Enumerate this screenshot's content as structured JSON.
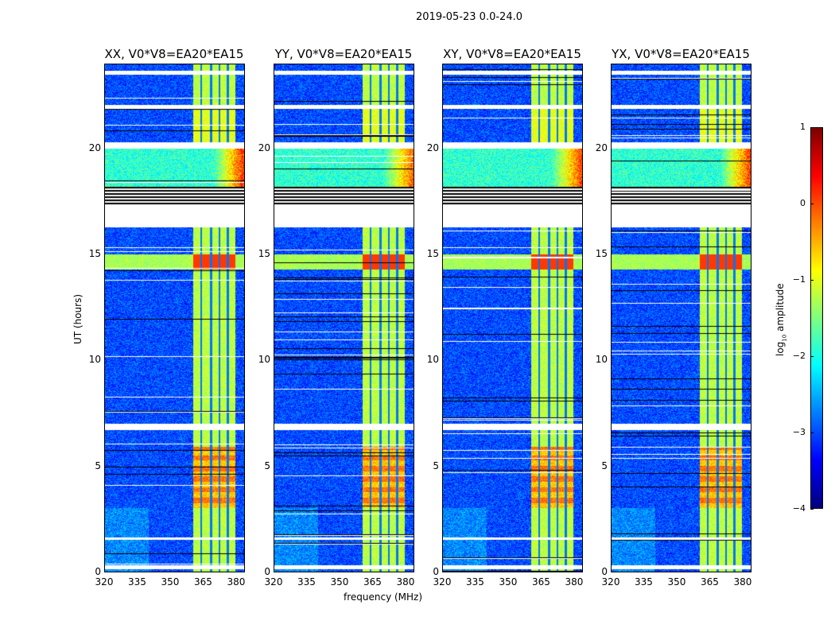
{
  "suptitle": "2019-05-23 0.0-24.0",
  "xlabel": "frequency (MHz)",
  "ylabel": "UT (hours)",
  "colorbar": {
    "label": "log10 amplitude",
    "label_main": "log",
    "label_sub": "10",
    "label_rest": " amplitude",
    "range": [
      -4,
      1
    ],
    "ticks": [
      "1",
      "0",
      "−1",
      "−2",
      "−3",
      "−4"
    ],
    "tick_values": [
      1,
      0,
      -1,
      -2,
      -3,
      -4
    ],
    "colormap": "jet"
  },
  "chart_data": [
    {
      "type": "heatmap",
      "title": "XX, V0*V8=EA20*EA15",
      "xlim": [
        320,
        384
      ],
      "ylim": [
        0,
        24
      ],
      "xticks": [
        "320",
        "335",
        "350",
        "365",
        "380"
      ],
      "yticks": [
        "0",
        "5",
        "10",
        "15",
        "20"
      ],
      "seed": 1,
      "hot_edge": 0.6
    },
    {
      "type": "heatmap",
      "title": "YY, V0*V8=EA20*EA15",
      "xlim": [
        320,
        384
      ],
      "ylim": [
        0,
        24
      ],
      "xticks": [
        "320",
        "335",
        "350",
        "365",
        "380"
      ],
      "yticks": [
        "0",
        "5",
        "10",
        "15",
        "20"
      ],
      "seed": 2,
      "hot_edge": 0.3
    },
    {
      "type": "heatmap",
      "title": "XY, V0*V8=EA20*EA15",
      "xlim": [
        320,
        384
      ],
      "ylim": [
        0,
        24
      ],
      "xticks": [
        "320",
        "335",
        "350",
        "365",
        "380"
      ],
      "yticks": [
        "0",
        "5",
        "10",
        "15",
        "20"
      ],
      "seed": 3,
      "hot_edge": 0.5
    },
    {
      "type": "heatmap",
      "title": "YX, V0*V8=EA20*EA15",
      "xlim": [
        320,
        384
      ],
      "ylim": [
        0,
        24
      ],
      "xticks": [
        "320",
        "335",
        "350",
        "365",
        "380"
      ],
      "yticks": [
        "0",
        "5",
        "10",
        "15",
        "20"
      ],
      "seed": 4,
      "hot_edge": 0.5
    }
  ],
  "features": {
    "background_log_amp": -3.0,
    "rfi_band_mhz": [
      360.5,
      380.0
    ],
    "rfi_band_log_amp": -1.2,
    "band_gaps_mhz": [
      364.3,
      368.8,
      372.7,
      376.6
    ],
    "flagged_hours": [
      [
        16.3,
        17.3
      ],
      [
        23.5,
        23.7
      ],
      [
        21.9,
        22.1
      ],
      [
        20.0,
        20.3
      ],
      [
        6.7,
        7.0
      ],
      [
        1.5,
        1.6
      ],
      [
        0.1,
        0.3
      ]
    ],
    "striped_hours": [
      17.3,
      18.2
    ],
    "elevated_hours": [
      18.2,
      20.0
    ],
    "bright_hours": [
      [
        14.3,
        15.0
      ],
      [
        3.0,
        5.9
      ]
    ]
  }
}
